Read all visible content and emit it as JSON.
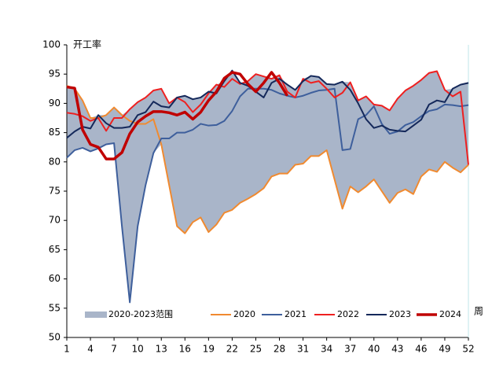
{
  "chart_data": {
    "type": "line",
    "y_label": "开工率",
    "x_label": "周",
    "x": [
      1,
      2,
      3,
      4,
      5,
      6,
      7,
      8,
      9,
      10,
      11,
      12,
      13,
      14,
      15,
      16,
      17,
      18,
      19,
      20,
      21,
      22,
      23,
      24,
      25,
      26,
      27,
      28,
      29,
      30,
      31,
      32,
      33,
      34,
      35,
      36,
      37,
      38,
      39,
      40,
      41,
      42,
      43,
      44,
      45,
      46,
      47,
      48,
      49,
      50,
      51,
      52
    ],
    "xlim": [
      1,
      52
    ],
    "xticks": [
      1,
      4,
      7,
      10,
      13,
      16,
      19,
      22,
      25,
      28,
      31,
      34,
      37,
      40,
      43,
      46,
      49,
      52
    ],
    "ylim": [
      50,
      100
    ],
    "yticks": [
      50,
      55,
      60,
      65,
      70,
      75,
      80,
      85,
      90,
      95,
      100
    ],
    "band": {
      "name": "2020-2023范围",
      "color": "#a9b5c9"
    },
    "series": [
      {
        "name": "2020",
        "color": "#f08a30",
        "width": 2,
        "in_band": true,
        "values": [
          93,
          92.5,
          90.5,
          87.5,
          87.5,
          88,
          89.3,
          88,
          87,
          86.5,
          86.5,
          87.3,
          83,
          76,
          69,
          67.8,
          69.7,
          70.5,
          68,
          69.3,
          71.3,
          71.8,
          73,
          73.7,
          74.5,
          75.5,
          77.5,
          78,
          78,
          79.5,
          79.7,
          81,
          81,
          82,
          77,
          72,
          75.8,
          74.8,
          75.8,
          77,
          75,
          73,
          74.7,
          75.3,
          74.5,
          77.5,
          78.7,
          78.3,
          80,
          79,
          78.2,
          79.5
        ]
      },
      {
        "name": "2021",
        "color": "#3e5f9c",
        "width": 2,
        "in_band": true,
        "values": [
          80.7,
          82,
          82.4,
          81.8,
          82.3,
          83,
          83.2,
          69,
          56,
          69,
          76,
          81.5,
          84,
          84,
          85,
          85,
          85.5,
          86.5,
          86.2,
          86.3,
          87,
          88.7,
          91.2,
          92.5,
          92.5,
          92.5,
          92.3,
          91.7,
          91.3,
          91,
          91.3,
          91.8,
          92.2,
          92.3,
          92.5,
          82,
          82.2,
          87.3,
          88,
          89.5,
          86.5,
          84.8,
          85.2,
          86.3,
          86.8,
          87.8,
          88.7,
          89,
          89.8,
          89.7,
          89.5,
          89.7
        ]
      },
      {
        "name": "2022",
        "color": "#ee2020",
        "width": 2,
        "in_band": true,
        "values": [
          88.4,
          88.2,
          87.8,
          87,
          87.5,
          85.3,
          87.5,
          87.5,
          89,
          90.2,
          91,
          92.2,
          92.5,
          90,
          91,
          90.2,
          88.5,
          89.8,
          91.7,
          93.2,
          92.8,
          94.2,
          93.3,
          93.8,
          95,
          94.6,
          94.2,
          94.8,
          92,
          91,
          94.2,
          93.5,
          93.8,
          92.5,
          91,
          91.8,
          93.6,
          90.5,
          91.2,
          89.8,
          89.6,
          88.8,
          90.8,
          92.2,
          93,
          94,
          95.2,
          95.5,
          92.3,
          91.2,
          92,
          79.5
        ]
      },
      {
        "name": "2023",
        "color": "#14285a",
        "width": 2,
        "in_band": true,
        "values": [
          84.1,
          85.2,
          86,
          85.7,
          88,
          86.6,
          85.8,
          85.8,
          86,
          88,
          88.5,
          90.3,
          89.5,
          89.3,
          91,
          91.3,
          90.7,
          91,
          92,
          91.7,
          93.8,
          95.6,
          93.5,
          93,
          92,
          91,
          93.5,
          94.2,
          93.2,
          92.3,
          93.8,
          94.7,
          94.5,
          93.3,
          93.2,
          93.7,
          92.3,
          90,
          87.3,
          85.8,
          86.2,
          85.5,
          85.3,
          85.2,
          86.2,
          87.2,
          89.8,
          90.5,
          90.2,
          92.5,
          93.2,
          93.5
        ]
      },
      {
        "name": "2024",
        "color": "#c00000",
        "width": 3.5,
        "in_band": false,
        "values": [
          92.8,
          92.6,
          85.5,
          83,
          82.5,
          80.5,
          80.5,
          81.6,
          84.8,
          86.8,
          87.8,
          88.6,
          88.6,
          88.4,
          88,
          88.5,
          87.3,
          88.5,
          90.5,
          92,
          94.3,
          95.3,
          95,
          93.3,
          92,
          93.5,
          95.3,
          93.5,
          91.3,
          null,
          null,
          null,
          null,
          null,
          null,
          null,
          null,
          null,
          null,
          null,
          null,
          null,
          null,
          null,
          null,
          null,
          null,
          null,
          null,
          null,
          null,
          null
        ]
      }
    ]
  }
}
